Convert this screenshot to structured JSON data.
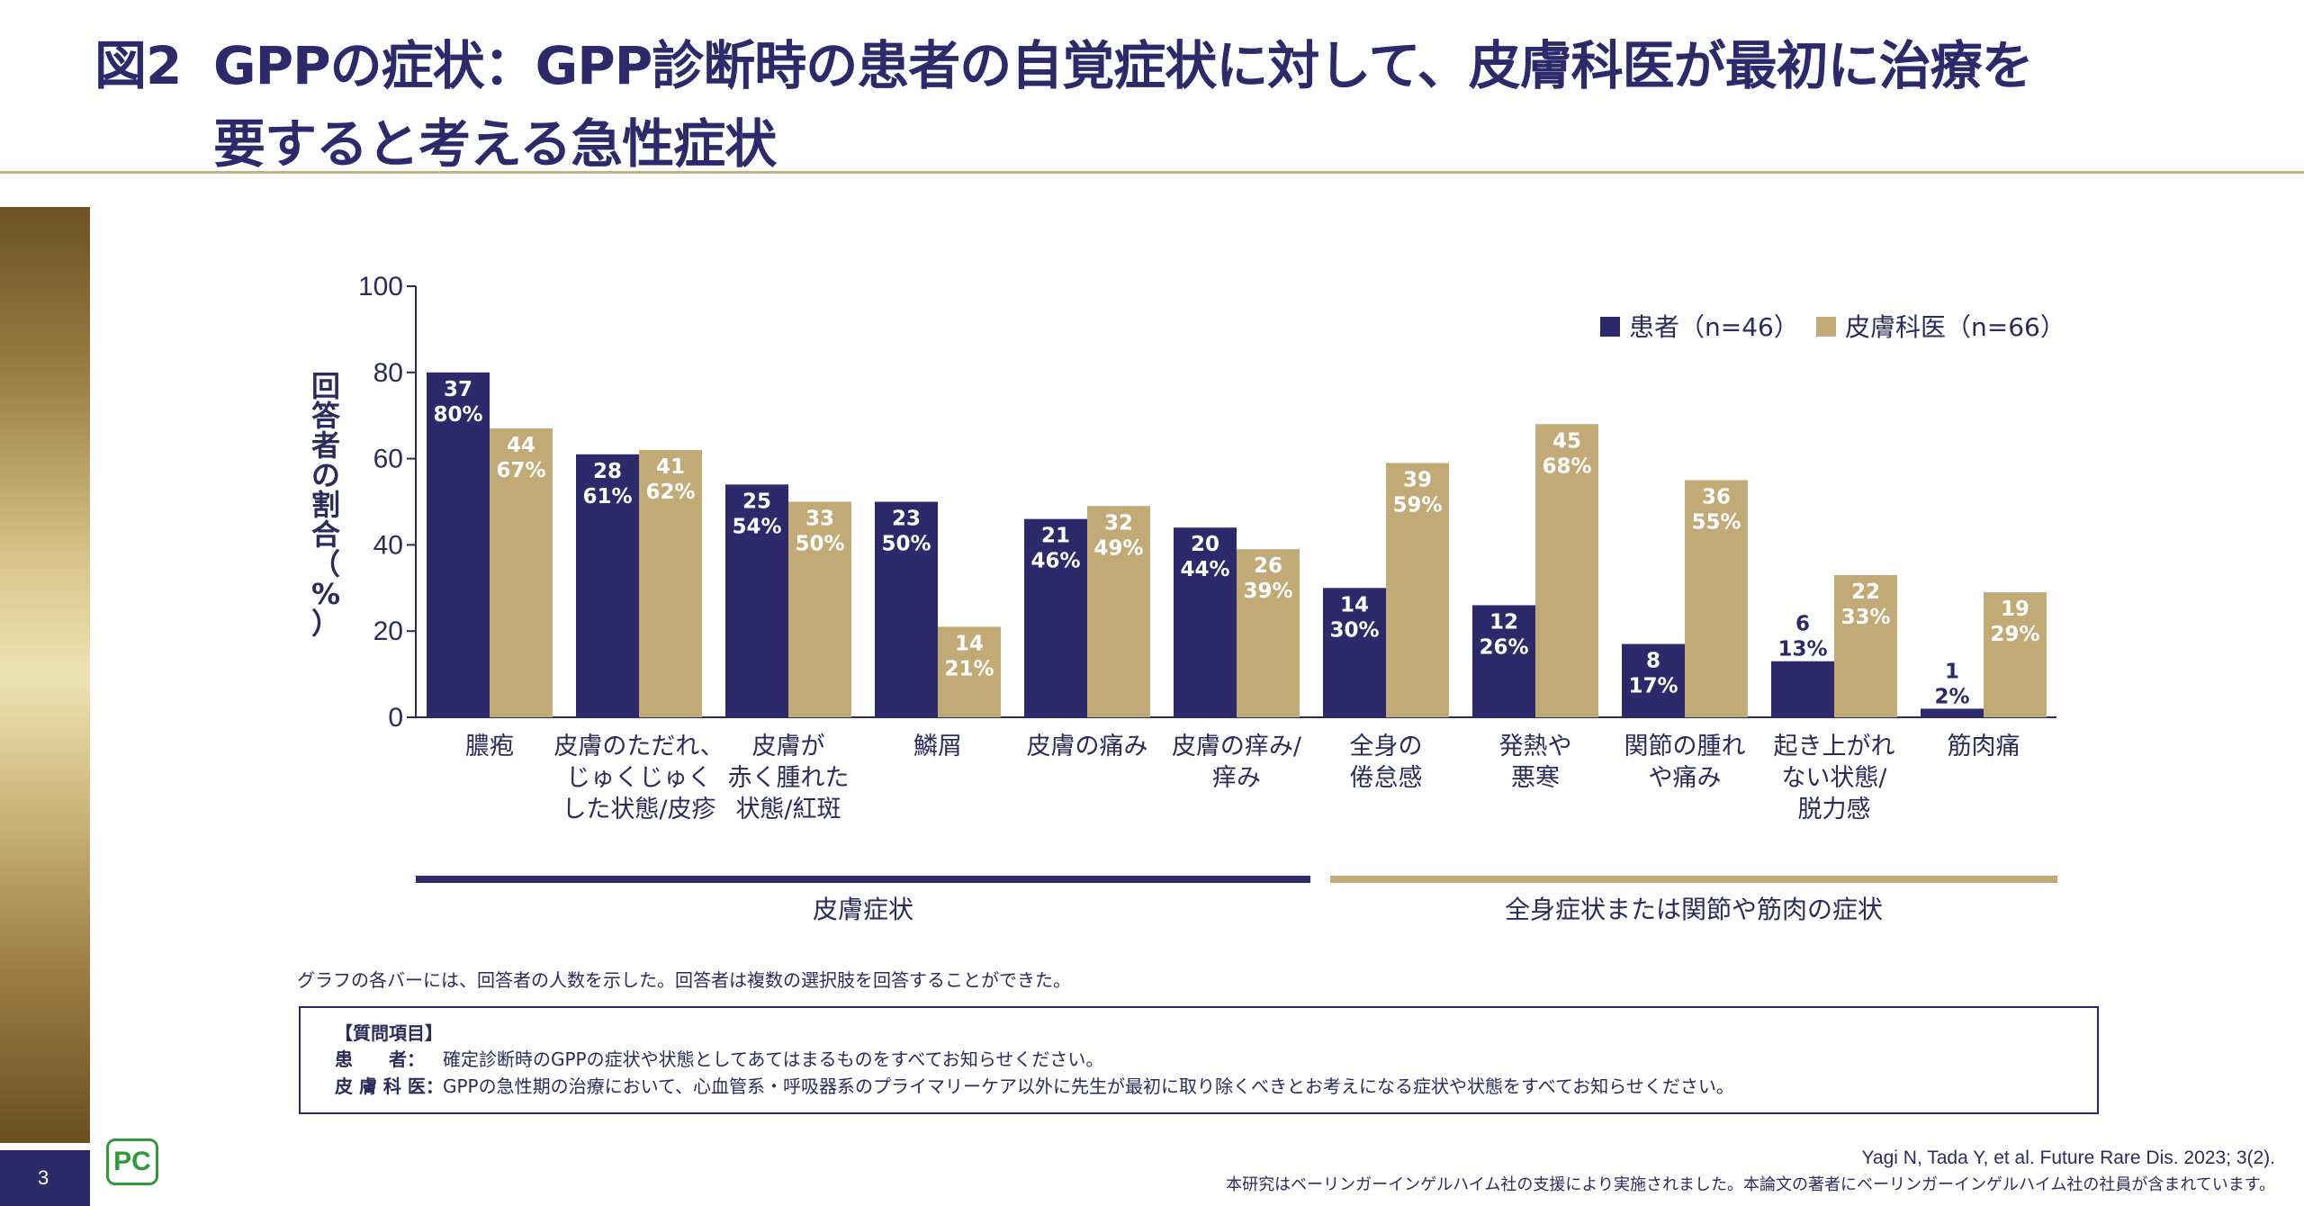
{
  "title": {
    "figure_number": "図2",
    "line1": "GPPの症状：GPP診断時の患者の自覚症状に対して、皮膚科医が最初に治療を",
    "line2": "要すると考える急性症状"
  },
  "page_number": "3",
  "logo_text": "PC",
  "colors": {
    "patients": "#2d2a6b",
    "dermatologists": "#c2aa77",
    "accent_gold": "#c8b27c",
    "brand_navy": "#2d2a6b"
  },
  "chart_data": {
    "type": "bar",
    "ylabel": "回答者の割合（%）",
    "ylim": [
      0,
      100
    ],
    "yticks": [
      0,
      20,
      40,
      60,
      80,
      100
    ],
    "legend_position": "top-right",
    "categories": [
      [
        "膿疱"
      ],
      [
        "皮膚のただれ、",
        "じゅくじゅく",
        "した状態/皮疹"
      ],
      [
        "皮膚が",
        "赤く腫れた",
        "状態/紅斑"
      ],
      [
        "鱗屑"
      ],
      [
        "皮膚の痛み"
      ],
      [
        "皮膚の痒み/",
        "痒み"
      ],
      [
        "全身の",
        "倦怠感"
      ],
      [
        "発熱や",
        "悪寒"
      ],
      [
        "関節の腫れ",
        "や痛み"
      ],
      [
        "起き上がれ",
        "ない状態/",
        "脱力感"
      ],
      [
        "筋肉痛"
      ]
    ],
    "series": [
      {
        "name": "患者（n=46）",
        "color": "#2d2a6b",
        "values": [
          80,
          61,
          54,
          50,
          46,
          44,
          30,
          26,
          17,
          13,
          2
        ],
        "counts": [
          "37",
          "28",
          "25",
          "23",
          "21",
          "20",
          "14",
          "12",
          "8",
          "6",
          "1"
        ],
        "percent_labels": [
          "80%",
          "61%",
          "54%",
          "50%",
          "46%",
          "44%",
          "30%",
          "26%",
          "17%",
          "13%",
          "2%"
        ]
      },
      {
        "name": "皮膚科医（n=66）",
        "color": "#c2aa77",
        "values": [
          67,
          62,
          50,
          21,
          49,
          39,
          59,
          68,
          55,
          33,
          29
        ],
        "counts": [
          "44",
          "41",
          "33",
          "14",
          "32",
          "26",
          "39",
          "45",
          "36",
          "22",
          "19"
        ],
        "percent_labels": [
          "67%",
          "62%",
          "50%",
          "21%",
          "49%",
          "39%",
          "59%",
          "68%",
          "55%",
          "33%",
          "29%"
        ]
      }
    ],
    "groups": [
      {
        "label": "皮膚症状",
        "from": 0,
        "to": 5,
        "color": "#2d2a6b"
      },
      {
        "label": "全身症状または関節や筋肉の症状",
        "from": 6,
        "to": 10,
        "color": "#c2aa77"
      }
    ]
  },
  "note": "グラフの各バーには、回答者の人数を示した。回答者は複数の選択肢を回答することができた。",
  "questions": {
    "heading": "【質問項目】",
    "patient_label": "患　　者：",
    "patient_text": "確定診断時のGPPの症状や状態としてあてはまるものをすべてお知らせください。",
    "derm_label": "皮 膚 科 医：",
    "derm_text": "GPPの急性期の治療において、心血管系・呼吸器系のプライマリーケア以外に先生が最初に取り除くべきとお考えになる症状や状態をすべてお知らせください。"
  },
  "citation": "Yagi N, Tada Y, et al. Future Rare Dis. 2023; 3(2).",
  "funding": "本研究はベーリンガーインゲルハイム社の支援により実施されました。本論文の著者にベーリンガーインゲルハイム社の社員が含まれています。"
}
